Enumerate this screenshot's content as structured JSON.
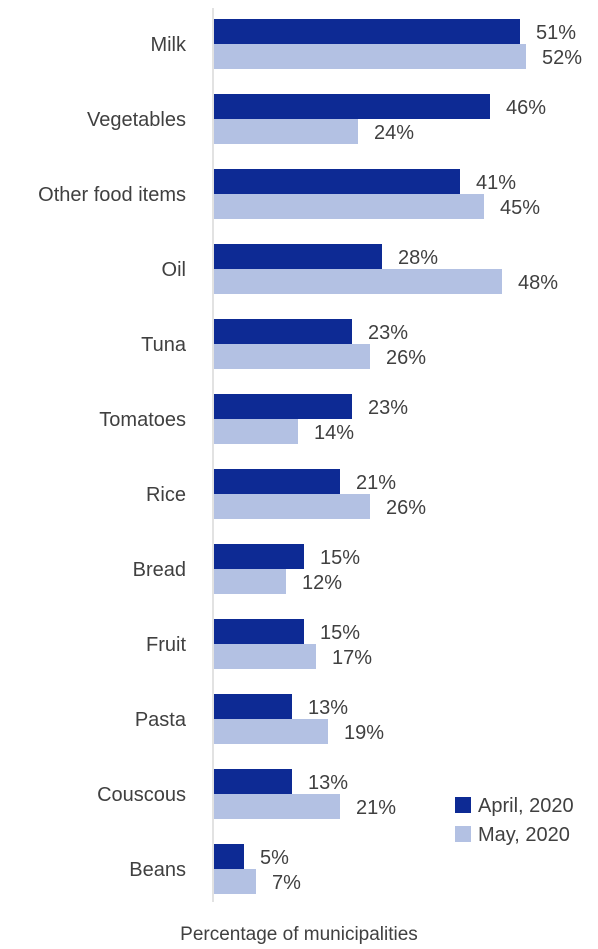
{
  "chart_data": {
    "type": "bar",
    "orientation": "horizontal",
    "categories": [
      "Milk",
      "Vegetables",
      "Other food items",
      "Oil",
      "Tuna",
      "Tomatoes",
      "Rice",
      "Bread",
      "Fruit",
      "Pasta",
      "Couscous",
      "Beans"
    ],
    "series": [
      {
        "name": "April, 2020",
        "color": "#0d2a94",
        "values": [
          51,
          46,
          41,
          28,
          23,
          23,
          21,
          15,
          15,
          13,
          13,
          5
        ]
      },
      {
        "name": "May, 2020",
        "color": "#b3c1e3",
        "values": [
          52,
          24,
          45,
          48,
          26,
          14,
          26,
          12,
          17,
          19,
          21,
          7
        ]
      }
    ],
    "value_suffix": "%",
    "xlabel": "Percentage of municipalities",
    "ylabel": "",
    "legend_position": "bottom-right",
    "grid": false
  }
}
